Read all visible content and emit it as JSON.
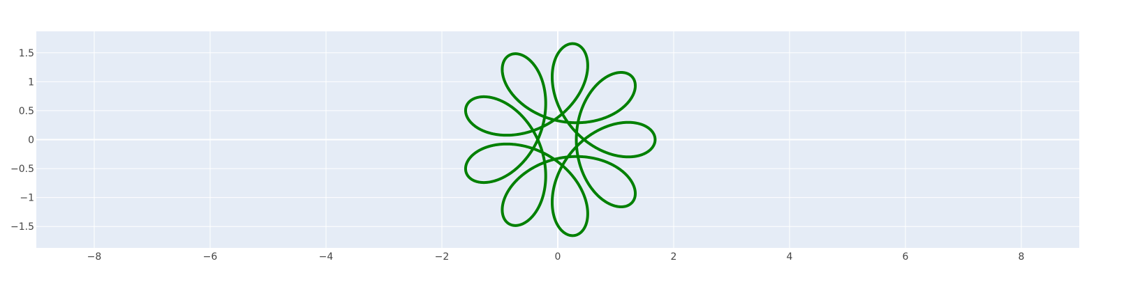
{
  "chart_data": {
    "type": "line",
    "title": "",
    "xlabel": "",
    "ylabel": "",
    "xlim": [
      -9,
      9
    ],
    "ylim": [
      -1.87,
      1.87
    ],
    "grid": true,
    "legend": "none",
    "x_ticks": [
      -8,
      -6,
      -4,
      -2,
      0,
      2,
      4,
      6,
      8
    ],
    "x_tick_labels": [
      "−8",
      "−6",
      "−4",
      "−2",
      "0",
      "2",
      "4",
      "6",
      "8"
    ],
    "y_ticks": [
      -1.5,
      -1,
      -0.5,
      0,
      0.5,
      1,
      1.5
    ],
    "y_tick_labels": [
      "−1.5",
      "−1",
      "−0.5",
      "0",
      "0.5",
      "1",
      "1.5"
    ],
    "series": [
      {
        "kind": "parametric-spirograph",
        "x_formula": "cos(t) + 0.68*cos(3.5*t)",
        "y_formula": "sin(t) - 0.68*sin(3.5*t)",
        "t_range": [
          0,
          12.566
        ],
        "color": "#008000"
      }
    ]
  },
  "colors": {
    "plot_background": "#e5ecf6",
    "grid": "#ffffff",
    "line": "#008000",
    "tick_text": "#444444"
  }
}
